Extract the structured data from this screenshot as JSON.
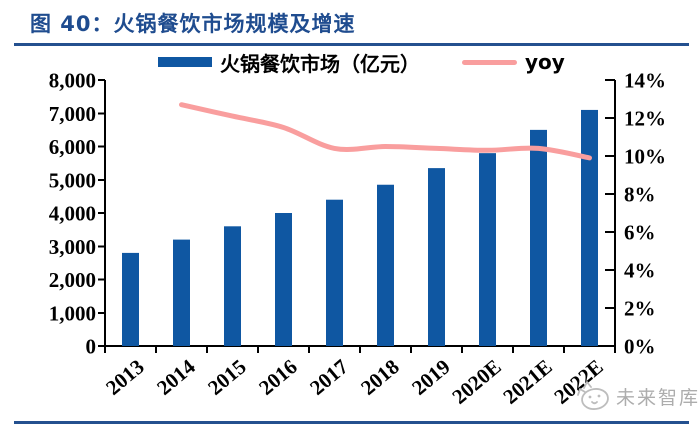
{
  "header": {
    "title": "图 40：火锅餐饮市场规模及增速"
  },
  "colors": {
    "bar": "#0F57A2",
    "line": "#F99E9E",
    "title": "#1F4C8F",
    "rule": "#24508F",
    "axis": "#000000",
    "watermark": "#ADADAD"
  },
  "watermark": {
    "icon": "cat-logo-icon",
    "text": "未来智库"
  },
  "chart_data": {
    "type": "bar",
    "subtype": "bar+line-combo",
    "title": "火锅餐饮市场规模及增速",
    "categories": [
      "2013",
      "2014",
      "2015",
      "2016",
      "2017",
      "2018",
      "2019",
      "2020E",
      "2021E",
      "2022E"
    ],
    "series": [
      {
        "name": "火锅餐饮市场（亿元）",
        "type": "bar",
        "axis": "left",
        "color": "#0F57A2",
        "values": [
          2800,
          3200,
          3600,
          4000,
          4400,
          4850,
          5350,
          5800,
          6500,
          7100
        ]
      },
      {
        "name": "yoy",
        "type": "line",
        "axis": "right",
        "color": "#F99E9E",
        "values": [
          null,
          12.7,
          12.1,
          11.5,
          10.4,
          10.5,
          10.4,
          10.3,
          10.4,
          9.9
        ]
      }
    ],
    "left_axis": {
      "min": 0,
      "max": 8000,
      "tick_labels": [
        "0",
        "1,000",
        "2,000",
        "3,000",
        "4,000",
        "5,000",
        "6,000",
        "7,000",
        "8,000"
      ]
    },
    "right_axis": {
      "min": 0,
      "max": 14,
      "unit": "%",
      "tick_labels": [
        "0%",
        "2%",
        "4%",
        "6%",
        "8%",
        "10%",
        "12%",
        "14%"
      ]
    },
    "legend_position": "top",
    "grid": false,
    "xlabel": "",
    "ylabel": ""
  }
}
